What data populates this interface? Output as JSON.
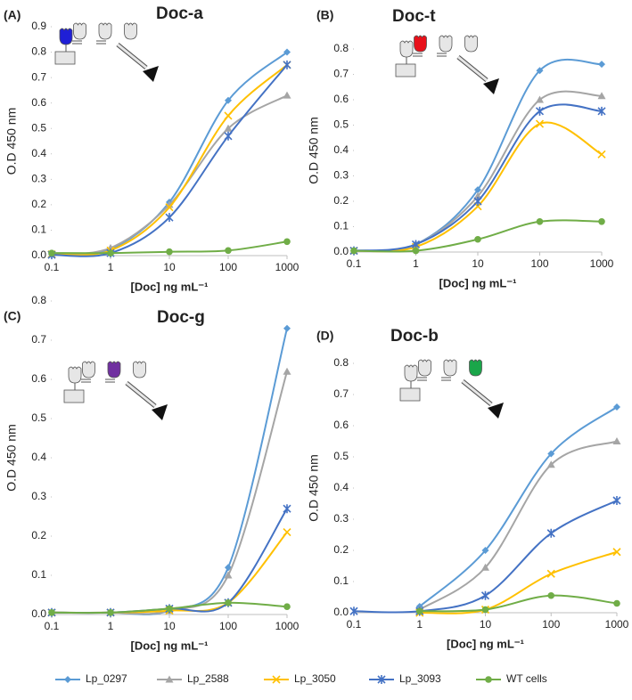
{
  "chart_data": [
    {
      "type": "line",
      "panel_label": "(A)",
      "title": "Doc-a",
      "xlabel": "[Doc] ng mL⁻¹",
      "ylabel": "O.D 450 nm",
      "log_x": true,
      "x": [
        0.1,
        1,
        10,
        100,
        1000
      ],
      "xlim": [
        0.1,
        1000
      ],
      "xticks": [
        0.1,
        1,
        10,
        100,
        1000
      ],
      "ylim": [
        0,
        0.9
      ],
      "yticks": [
        {
          "value": 0,
          "label": "0.0"
        },
        0.1,
        0.2,
        0.3,
        0.4,
        0.5,
        0.6,
        0.7,
        0.8,
        0.9
      ],
      "icon_color": "#1f1fd6",
      "series": [
        {
          "name": "Lp_0297",
          "color": "#5b9bd5",
          "marker": "diamond",
          "values": [
            0.005,
            0.025,
            0.21,
            0.61,
            0.8
          ]
        },
        {
          "name": "Lp_2588",
          "color": "#a5a5a5",
          "marker": "triangle",
          "values": [
            0.005,
            0.03,
            0.2,
            0.5,
            0.63
          ]
        },
        {
          "name": "Lp_3050",
          "color": "#ffc000",
          "marker": "x",
          "values": [
            0.005,
            0.02,
            0.19,
            0.55,
            0.75
          ]
        },
        {
          "name": "Lp_3093",
          "color": "#4472c4",
          "marker": "star",
          "values": [
            0.003,
            0.01,
            0.15,
            0.47,
            0.75
          ]
        },
        {
          "name": "WT cells",
          "color": "#70ad47",
          "marker": "circle",
          "values": [
            0.01,
            0.01,
            0.015,
            0.02,
            0.055
          ]
        }
      ]
    },
    {
      "type": "line",
      "panel_label": "(B)",
      "title": "Doc-t",
      "xlabel": "[Doc] ng mL⁻¹",
      "ylabel": "O.D 450 nm",
      "log_x": true,
      "x": [
        0.1,
        1,
        10,
        100,
        1000
      ],
      "xlim": [
        0.1,
        1000
      ],
      "xticks": [
        0.1,
        1,
        10,
        100,
        1000
      ],
      "ylim": [
        0,
        0.8
      ],
      "yticks": [
        {
          "value": 0,
          "label": "0.0"
        },
        0.1,
        0.2,
        0.3,
        0.4,
        0.5,
        0.6,
        0.7,
        0.8
      ],
      "icon_color": "#e8101a",
      "series": [
        {
          "name": "Lp_0297",
          "color": "#5b9bd5",
          "marker": "diamond",
          "values": [
            0.005,
            0.03,
            0.245,
            0.715,
            0.74
          ]
        },
        {
          "name": "Lp_2588",
          "color": "#a5a5a5",
          "marker": "triangle",
          "values": [
            0.005,
            0.03,
            0.22,
            0.6,
            0.615
          ]
        },
        {
          "name": "Lp_3050",
          "color": "#ffc000",
          "marker": "x",
          "values": [
            0.005,
            0.02,
            0.18,
            0.505,
            0.385
          ]
        },
        {
          "name": "Lp_3093",
          "color": "#4472c4",
          "marker": "star",
          "values": [
            0.005,
            0.03,
            0.2,
            0.555,
            0.555
          ]
        },
        {
          "name": "WT cells",
          "color": "#70ad47",
          "marker": "circle",
          "values": [
            0.005,
            0.005,
            0.05,
            0.12,
            0.12
          ]
        }
      ]
    },
    {
      "type": "line",
      "panel_label": "(C)",
      "title": "Doc-g",
      "xlabel": "[Doc] ng mL⁻¹",
      "ylabel": "O.D 450 nm",
      "log_x": true,
      "x": [
        0.1,
        1,
        10,
        100,
        1000
      ],
      "xlim": [
        0.1,
        1000
      ],
      "xticks": [
        0.1,
        1,
        10,
        100,
        1000
      ],
      "ylim": [
        0,
        0.8
      ],
      "yticks": [
        {
          "value": 0,
          "label": "0.0"
        },
        0.1,
        0.2,
        0.3,
        0.4,
        0.5,
        0.6,
        0.7,
        0.8
      ],
      "icon_color": "#7030a0",
      "series": [
        {
          "name": "Lp_0297",
          "color": "#5b9bd5",
          "marker": "diamond",
          "values": [
            0.005,
            0.005,
            0.01,
            0.12,
            0.73
          ]
        },
        {
          "name": "Lp_2588",
          "color": "#a5a5a5",
          "marker": "triangle",
          "values": [
            0.005,
            0.005,
            0.01,
            0.1,
            0.62
          ]
        },
        {
          "name": "Lp_3050",
          "color": "#ffc000",
          "marker": "x",
          "values": [
            0.005,
            0.005,
            0.01,
            0.03,
            0.21
          ]
        },
        {
          "name": "Lp_3093",
          "color": "#4472c4",
          "marker": "star",
          "values": [
            0.005,
            0.005,
            0.015,
            0.03,
            0.27
          ]
        },
        {
          "name": "WT cells",
          "color": "#70ad47",
          "marker": "circle",
          "values": [
            0.005,
            0.005,
            0.015,
            0.03,
            0.02
          ]
        }
      ]
    },
    {
      "type": "line",
      "panel_label": "(D)",
      "title": "Doc-b",
      "xlabel": "[Doc] ng mL⁻¹",
      "ylabel": "O.D 450 nm",
      "log_x": true,
      "x": [
        0.1,
        1,
        10,
        100,
        1000
      ],
      "xlim": [
        0.1,
        1000
      ],
      "xticks": [
        0.1,
        1,
        10,
        100,
        1000
      ],
      "ylim": [
        0,
        0.8
      ],
      "yticks": [
        {
          "value": 0,
          "label": "0.0"
        },
        0.1,
        0.2,
        0.3,
        0.4,
        0.5,
        0.6,
        0.7,
        0.8
      ],
      "icon_color": "#1aa64a",
      "series": [
        {
          "name": "Lp_0297",
          "color": "#5b9bd5",
          "marker": "diamond",
          "values": [
            null,
            0.02,
            0.2,
            0.51,
            0.66
          ]
        },
        {
          "name": "Lp_2588",
          "color": "#a5a5a5",
          "marker": "triangle",
          "values": [
            null,
            0.01,
            0.145,
            0.475,
            0.55
          ]
        },
        {
          "name": "Lp_3050",
          "color": "#ffc000",
          "marker": "x",
          "values": [
            null,
            0.0,
            0.01,
            0.125,
            0.195
          ]
        },
        {
          "name": "Lp_3093",
          "color": "#4472c4",
          "marker": "star",
          "values": [
            0.005,
            0.005,
            0.055,
            0.255,
            0.36
          ]
        },
        {
          "name": "WT cells",
          "color": "#70ad47",
          "marker": "circle",
          "values": [
            null,
            0.005,
            0.01,
            0.055,
            0.03
          ]
        }
      ]
    }
  ]
}
